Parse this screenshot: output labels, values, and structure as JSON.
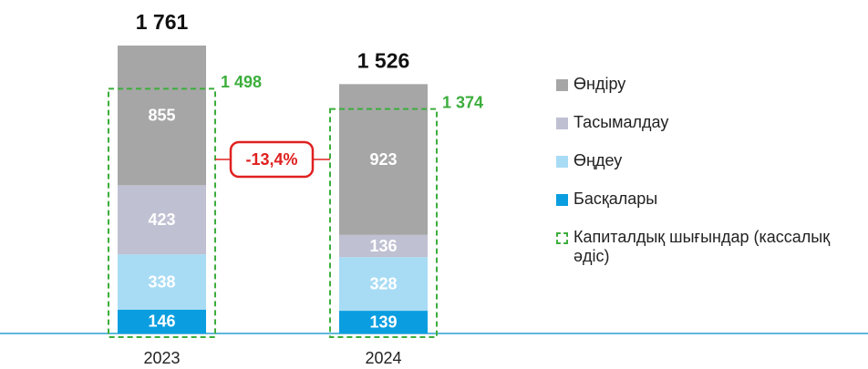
{
  "chart_data": {
    "type": "stacked_bar",
    "categories": [
      "2023",
      "2024"
    ],
    "series": [
      {
        "name": "Басқалары",
        "color": "#0a9ee0",
        "values": [
          146,
          139
        ]
      },
      {
        "name": "Өңдеу",
        "color": "#a8dcf5",
        "values": [
          338,
          328
        ]
      },
      {
        "name": "Тасымалдау",
        "color": "#bfc0d2",
        "values": [
          423,
          136
        ]
      },
      {
        "name": "Өндіру",
        "color": "#a6a6a6",
        "values": [
          855,
          923
        ]
      }
    ],
    "totals": [
      1761,
      1526
    ],
    "total_labels": [
      "1 761",
      "1 526"
    ],
    "capex": {
      "name": "Капиталдық шығындар (кассалық әдіс)",
      "color": "#3cae3c",
      "values": [
        1498,
        1374
      ],
      "value_labels": [
        "1 498",
        "1 374"
      ]
    },
    "annotation": "-13,4%"
  }
}
